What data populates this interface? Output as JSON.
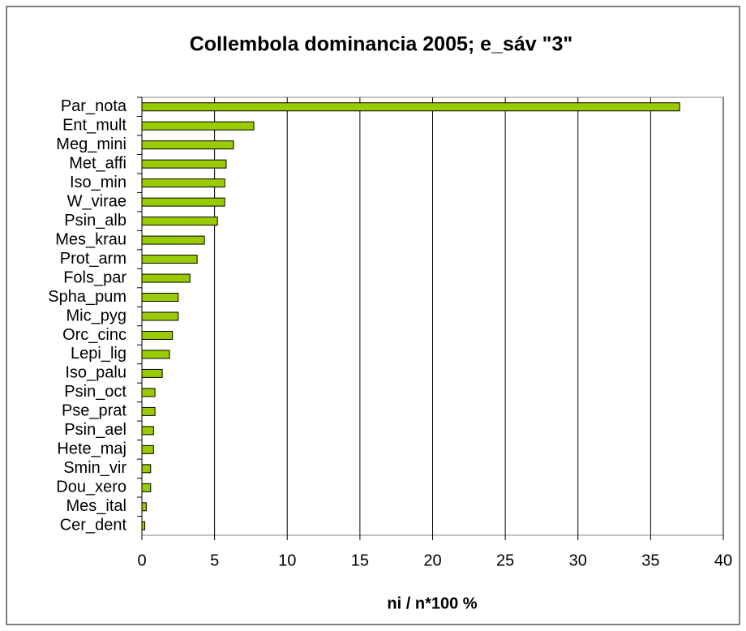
{
  "chart_data": {
    "type": "barh",
    "title": "Collembola dominancia 2005; e_sáv \"3\"",
    "xlabel": "ni / n*100 %",
    "categories": [
      "Par_nota",
      "Ent_mult",
      "Meg_mini",
      "Met_affi",
      "Iso_min",
      "W_virae",
      "Psin_alb",
      "Mes_krau",
      "Prot_arm",
      "Fols_par",
      "Spha_pum",
      "Mic_pyg",
      "Orc_cinc",
      "Lepi_lig",
      "Iso_palu",
      "Psin_oct",
      "Pse_prat",
      "Psin_ael",
      "Hete_maj",
      "Smin_vir",
      "Dou_xero",
      "Mes_ital",
      "Cer_dent"
    ],
    "values": [
      37.0,
      7.7,
      6.3,
      5.8,
      5.7,
      5.7,
      5.2,
      4.3,
      3.8,
      3.3,
      2.5,
      2.5,
      2.1,
      1.9,
      1.4,
      0.9,
      0.9,
      0.8,
      0.8,
      0.6,
      0.6,
      0.3,
      0.2
    ],
    "color": "#99cc00",
    "xlim": [
      0,
      40
    ],
    "xticks": [
      0,
      5,
      10,
      15,
      20,
      25,
      30,
      35,
      40
    ],
    "grid": true
  }
}
